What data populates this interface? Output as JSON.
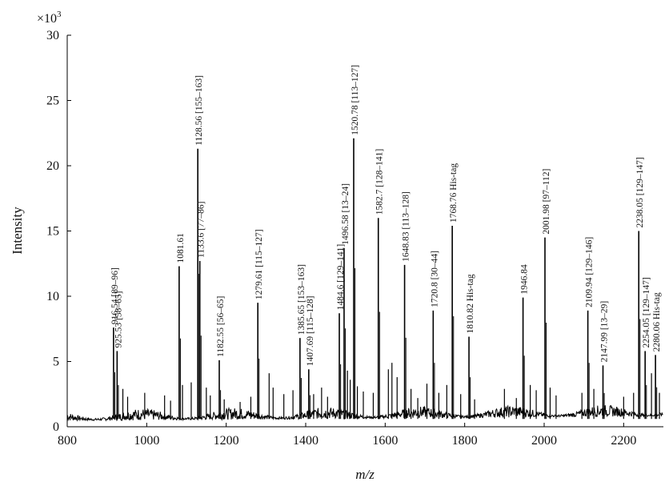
{
  "chart_data": {
    "type": "line",
    "title": "",
    "xlabel": "m/z",
    "ylabel": "Intensity",
    "y_multiplier": "×10",
    "y_multiplier_exp": "3",
    "xlim": [
      800,
      2300
    ],
    "ylim": [
      0,
      30
    ],
    "x_ticks": [
      800,
      1000,
      1200,
      1400,
      1600,
      1800,
      2000,
      2200
    ],
    "y_ticks": [
      0,
      5,
      10,
      15,
      20,
      25,
      30
    ],
    "grid": false,
    "line_color": "#000000",
    "peaks": [
      {
        "x": 916.54,
        "y": 7.6,
        "label": "916.54 [89–96]"
      },
      {
        "x": 925.53,
        "y": 5.8,
        "label": "925.53 [58–65]"
      },
      {
        "x": 1081.61,
        "y": 12.3,
        "label": "1081.61"
      },
      {
        "x": 1128.56,
        "y": 21.3,
        "label": "1128.56 [155–163]"
      },
      {
        "x": 1133.6,
        "y": 12.7,
        "label": "1133.6 [77–86]"
      },
      {
        "x": 1182.55,
        "y": 5.1,
        "label": "1182.55 [56–65]"
      },
      {
        "x": 1279.61,
        "y": 9.5,
        "label": "1279.61 [115–127]"
      },
      {
        "x": 1385.65,
        "y": 6.8,
        "label": "1385.65 [153–163]"
      },
      {
        "x": 1407.69,
        "y": 4.4,
        "label": "1407.69 [115–128]"
      },
      {
        "x": 1484.6,
        "y": 8.7,
        "label": "1484.6 [129–141]"
      },
      {
        "x": 1496.58,
        "y": 13.7,
        "label": "1496.58 [13–24]"
      },
      {
        "x": 1520.78,
        "y": 22.1,
        "label": "1520.78 [113–127]"
      },
      {
        "x": 1582.7,
        "y": 16.0,
        "label": "1582.7 [128–141]"
      },
      {
        "x": 1648.83,
        "y": 12.4,
        "label": "1648.83 [113–128]"
      },
      {
        "x": 1720.8,
        "y": 8.9,
        "label": "1720.8 [30–44]"
      },
      {
        "x": 1768.76,
        "y": 15.4,
        "label": "1768.76 His-tag"
      },
      {
        "x": 1810.82,
        "y": 6.9,
        "label": "1810.82 His-tag"
      },
      {
        "x": 1946.84,
        "y": 9.9,
        "label": "1946.84"
      },
      {
        "x": 2001.98,
        "y": 14.5,
        "label": "2001.98 [97–112]"
      },
      {
        "x": 2109.94,
        "y": 8.9,
        "label": "2109.94 [129–146]"
      },
      {
        "x": 2147.99,
        "y": 4.7,
        "label": "2147.99 [13–29]"
      },
      {
        "x": 2238.05,
        "y": 15.0,
        "label": "2238.05 [129–147]"
      },
      {
        "x": 2254.05,
        "y": 5.8,
        "label": "2254.05 [129–147]"
      },
      {
        "x": 2280.06,
        "y": 5.5,
        "label": "2280.06 His-tag"
      }
    ],
    "minor_peaks": [
      {
        "x": 940,
        "y": 2.9
      },
      {
        "x": 952,
        "y": 2.3
      },
      {
        "x": 995,
        "y": 2.6
      },
      {
        "x": 1045,
        "y": 2.4
      },
      {
        "x": 1060,
        "y": 2.0
      },
      {
        "x": 1090,
        "y": 3.2
      },
      {
        "x": 1112,
        "y": 3.4
      },
      {
        "x": 1150,
        "y": 3.0
      },
      {
        "x": 1160,
        "y": 2.4
      },
      {
        "x": 1195,
        "y": 2.1
      },
      {
        "x": 1235,
        "y": 1.9
      },
      {
        "x": 1262,
        "y": 2.3
      },
      {
        "x": 1308,
        "y": 4.1
      },
      {
        "x": 1318,
        "y": 3.0
      },
      {
        "x": 1345,
        "y": 2.5
      },
      {
        "x": 1368,
        "y": 2.8
      },
      {
        "x": 1420,
        "y": 2.5
      },
      {
        "x": 1440,
        "y": 3.0
      },
      {
        "x": 1455,
        "y": 2.3
      },
      {
        "x": 1505,
        "y": 4.3
      },
      {
        "x": 1512,
        "y": 3.6
      },
      {
        "x": 1530,
        "y": 3.1
      },
      {
        "x": 1545,
        "y": 2.7
      },
      {
        "x": 1570,
        "y": 2.6
      },
      {
        "x": 1608,
        "y": 4.4
      },
      {
        "x": 1617,
        "y": 4.9
      },
      {
        "x": 1630,
        "y": 3.8
      },
      {
        "x": 1665,
        "y": 2.9
      },
      {
        "x": 1682,
        "y": 2.2
      },
      {
        "x": 1705,
        "y": 3.3
      },
      {
        "x": 1735,
        "y": 2.6
      },
      {
        "x": 1755,
        "y": 3.2
      },
      {
        "x": 1790,
        "y": 2.5
      },
      {
        "x": 1825,
        "y": 2.1
      },
      {
        "x": 1900,
        "y": 2.9
      },
      {
        "x": 1930,
        "y": 2.2
      },
      {
        "x": 1965,
        "y": 3.2
      },
      {
        "x": 1980,
        "y": 2.8
      },
      {
        "x": 2015,
        "y": 3.0
      },
      {
        "x": 2030,
        "y": 2.4
      },
      {
        "x": 2095,
        "y": 2.6
      },
      {
        "x": 2125,
        "y": 2.9
      },
      {
        "x": 2200,
        "y": 2.3
      },
      {
        "x": 2225,
        "y": 2.6
      },
      {
        "x": 2270,
        "y": 4.1
      },
      {
        "x": 2290,
        "y": 2.6
      }
    ]
  }
}
